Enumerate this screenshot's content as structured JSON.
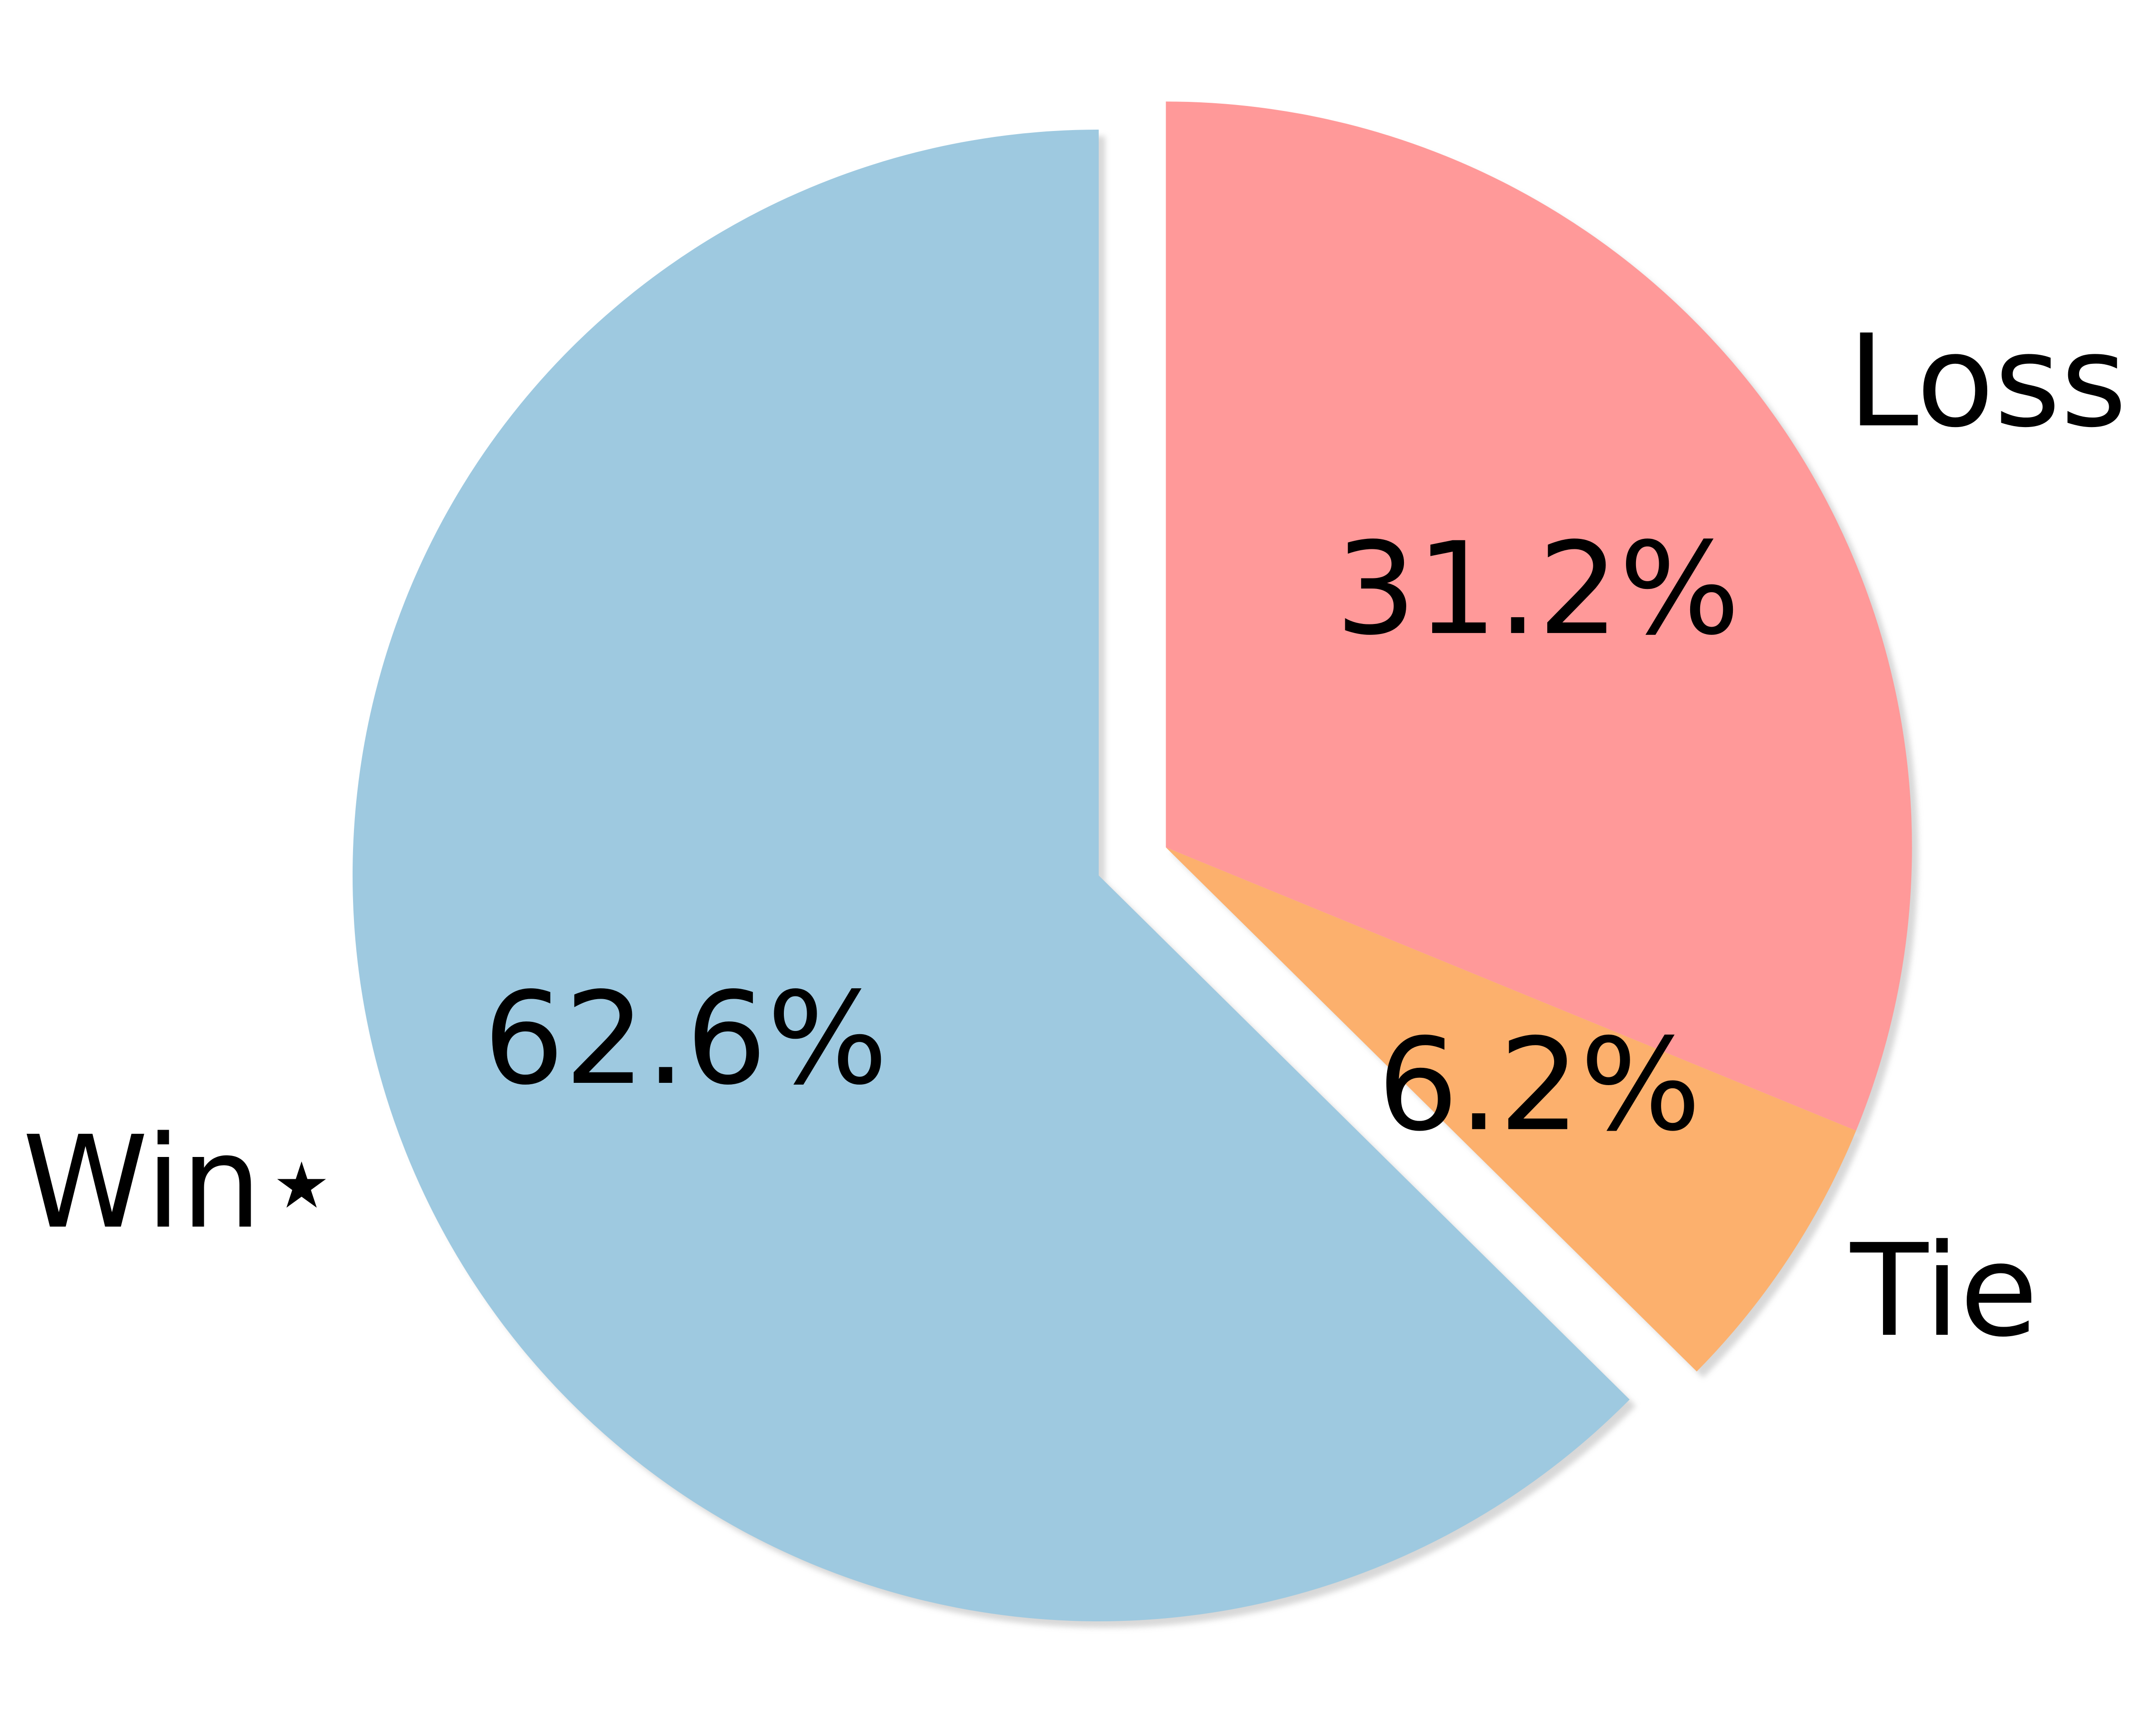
{
  "chart_data": {
    "type": "pie",
    "title": "",
    "categories": [
      "Win⋆",
      "Loss",
      "Tie"
    ],
    "values": [
      62.6,
      31.2,
      6.2
    ],
    "value_labels": [
      "62.6%",
      "31.2%",
      "6.2%"
    ],
    "colors": [
      "#9ec9e0",
      "#ff9999",
      "#fcb06d"
    ],
    "exploded": [
      false,
      true,
      true
    ],
    "shadow": true,
    "start": "top, clockwise: Loss, Tie, Win⋆",
    "legend": "none"
  }
}
